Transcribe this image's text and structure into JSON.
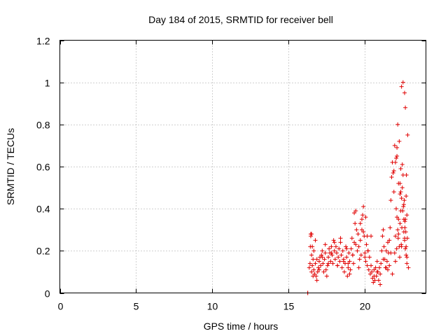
{
  "chart_data": {
    "type": "scatter",
    "title": "Day 184 of 2015, SRMTID for receiver bell",
    "xlabel": "GPS time / hours",
    "ylabel": "SRMTID / TECUs",
    "xlim": [
      0,
      24
    ],
    "ylim": [
      0,
      1.2
    ],
    "xticks": [
      0,
      5,
      10,
      15,
      20
    ],
    "xtick_labels": [
      "0",
      "5",
      "10",
      "15",
      "20"
    ],
    "yticks": [
      0,
      0.2,
      0.4,
      0.6,
      0.8,
      1.0,
      1.2
    ],
    "ytick_labels": [
      "0",
      "0.2",
      "0.4",
      "0.6",
      "0.8",
      "1",
      "1.2"
    ],
    "grid": true,
    "marker": "plus",
    "colors": {
      "series": "#e00000",
      "axes": "#000000",
      "grid": "#a0a0a0"
    },
    "series": [
      {
        "name": "SRMTID",
        "x": [
          16.25,
          16.25,
          16.35,
          16.4,
          16.42,
          16.45,
          16.5,
          16.5,
          16.55,
          16.6,
          16.65,
          16.7,
          16.75,
          16.8,
          16.85,
          16.9,
          16.95,
          17.0,
          17.05,
          17.1,
          17.15,
          17.2,
          17.25,
          17.3,
          17.35,
          17.4,
          17.45,
          17.5,
          17.55,
          17.6,
          17.65,
          17.7,
          17.75,
          17.8,
          17.85,
          17.9,
          17.95,
          18.0,
          18.05,
          18.1,
          18.15,
          18.2,
          18.25,
          18.3,
          18.35,
          18.4,
          18.45,
          18.5,
          18.55,
          18.6,
          18.65,
          18.7,
          18.75,
          18.8,
          18.85,
          18.9,
          18.95,
          19.0,
          19.05,
          19.1,
          19.15,
          19.2,
          19.25,
          19.3,
          19.35,
          19.4,
          19.45,
          19.5,
          19.55,
          19.6,
          19.65,
          19.7,
          19.75,
          19.8,
          19.85,
          19.9,
          19.95,
          20.0,
          20.05,
          20.1,
          20.15,
          20.2,
          20.25,
          20.3,
          20.35,
          20.4,
          20.45,
          20.5,
          20.55,
          20.6,
          20.65,
          20.7,
          20.75,
          20.8,
          20.85,
          20.9,
          20.95,
          21.0,
          21.05,
          21.1,
          21.15,
          21.2,
          21.25,
          21.3,
          21.35,
          21.4,
          21.45,
          21.5,
          21.55,
          21.6,
          21.65,
          21.7,
          21.75,
          21.8,
          21.85,
          21.9,
          21.95,
          22.0,
          22.05,
          22.1,
          22.15,
          22.2,
          22.25,
          22.3,
          22.35,
          22.4,
          22.45,
          22.5,
          22.55,
          22.6,
          22.65,
          22.7,
          22.75,
          16.45,
          16.55,
          16.65,
          16.75,
          16.85,
          17.0,
          17.2,
          17.4,
          17.6,
          17.8,
          18.0,
          18.2,
          18.4,
          18.6,
          18.8,
          19.0,
          19.2,
          19.4,
          19.6,
          19.8,
          20.0,
          20.2,
          20.4,
          20.6,
          20.8,
          21.0,
          21.2,
          21.4,
          21.6,
          21.8,
          22.0,
          22.2,
          22.4,
          22.6,
          16.5,
          16.6,
          18.9,
          19.3,
          19.7,
          19.9,
          20.05,
          20.15,
          21.5,
          21.7,
          21.9,
          22.1,
          22.3,
          22.35,
          22.45,
          22.55,
          22.65,
          22.7,
          22.75,
          22.8,
          22.15,
          22.25,
          22.4,
          22.5,
          22.6,
          22.65,
          22.72,
          22.05,
          22.1,
          22.2,
          22.3,
          22.35,
          22.42,
          22.48,
          22.58,
          22.62,
          22.68,
          22.78,
          22.85,
          21.95,
          22.0,
          22.08,
          22.18,
          22.28,
          22.38,
          22.52,
          22.55,
          22.62,
          22.7,
          22.75
        ],
        "y": [
          0.0,
          0.0,
          0.12,
          0.14,
          0.22,
          0.27,
          0.18,
          0.1,
          0.13,
          0.16,
          0.11,
          0.09,
          0.14,
          0.08,
          0.06,
          0.1,
          0.12,
          0.15,
          0.17,
          0.13,
          0.18,
          0.2,
          0.14,
          0.1,
          0.16,
          0.19,
          0.11,
          0.08,
          0.13,
          0.17,
          0.21,
          0.19,
          0.15,
          0.22,
          0.18,
          0.14,
          0.25,
          0.2,
          0.16,
          0.22,
          0.19,
          0.13,
          0.17,
          0.21,
          0.15,
          0.24,
          0.18,
          0.12,
          0.2,
          0.16,
          0.1,
          0.14,
          0.22,
          0.17,
          0.08,
          0.12,
          0.19,
          0.15,
          0.11,
          0.21,
          0.26,
          0.18,
          0.14,
          0.24,
          0.33,
          0.39,
          0.3,
          0.2,
          0.28,
          0.22,
          0.16,
          0.25,
          0.18,
          0.3,
          0.37,
          0.41,
          0.27,
          0.19,
          0.15,
          0.23,
          0.13,
          0.2,
          0.11,
          0.17,
          0.09,
          0.13,
          0.1,
          0.07,
          0.05,
          0.11,
          0.06,
          0.12,
          0.08,
          0.15,
          0.1,
          0.06,
          0.12,
          0.09,
          0.14,
          0.2,
          0.27,
          0.3,
          0.22,
          0.16,
          0.12,
          0.2,
          0.15,
          0.11,
          0.19,
          0.25,
          0.31,
          0.44,
          0.55,
          0.62,
          0.57,
          0.48,
          0.7,
          0.62,
          0.4,
          0.36,
          0.3,
          0.28,
          0.22,
          0.33,
          0.39,
          0.45,
          0.5,
          0.56,
          0.29,
          0.26,
          0.21,
          0.18,
          0.17,
          0.28,
          0.22,
          0.2,
          0.25,
          0.16,
          0.11,
          0.17,
          0.23,
          0.14,
          0.19,
          0.24,
          0.13,
          0.26,
          0.15,
          0.21,
          0.09,
          0.18,
          0.23,
          0.12,
          0.35,
          0.17,
          0.2,
          0.27,
          0.08,
          0.1,
          0.04,
          0.16,
          0.12,
          0.13,
          0.09,
          0.27,
          0.35,
          0.22,
          0.25,
          0.28,
          0.08,
          0.14,
          0.38,
          0.33,
          0.29,
          0.36,
          0.27,
          0.24,
          0.19,
          0.58,
          0.65,
          0.52,
          0.48,
          0.61,
          0.42,
          0.35,
          0.22,
          0.14,
          0.75,
          0.8,
          0.72,
          0.98,
          1.0,
          0.95,
          0.88,
          0.56,
          0.64,
          0.69,
          0.52,
          0.47,
          0.59,
          0.31,
          0.39,
          0.44,
          0.34,
          0.29,
          0.26,
          0.12,
          0.19,
          0.15,
          0.21,
          0.26,
          0.17,
          0.23,
          0.41,
          0.35,
          0.31,
          0.46,
          0.37
        ]
      }
    ]
  }
}
